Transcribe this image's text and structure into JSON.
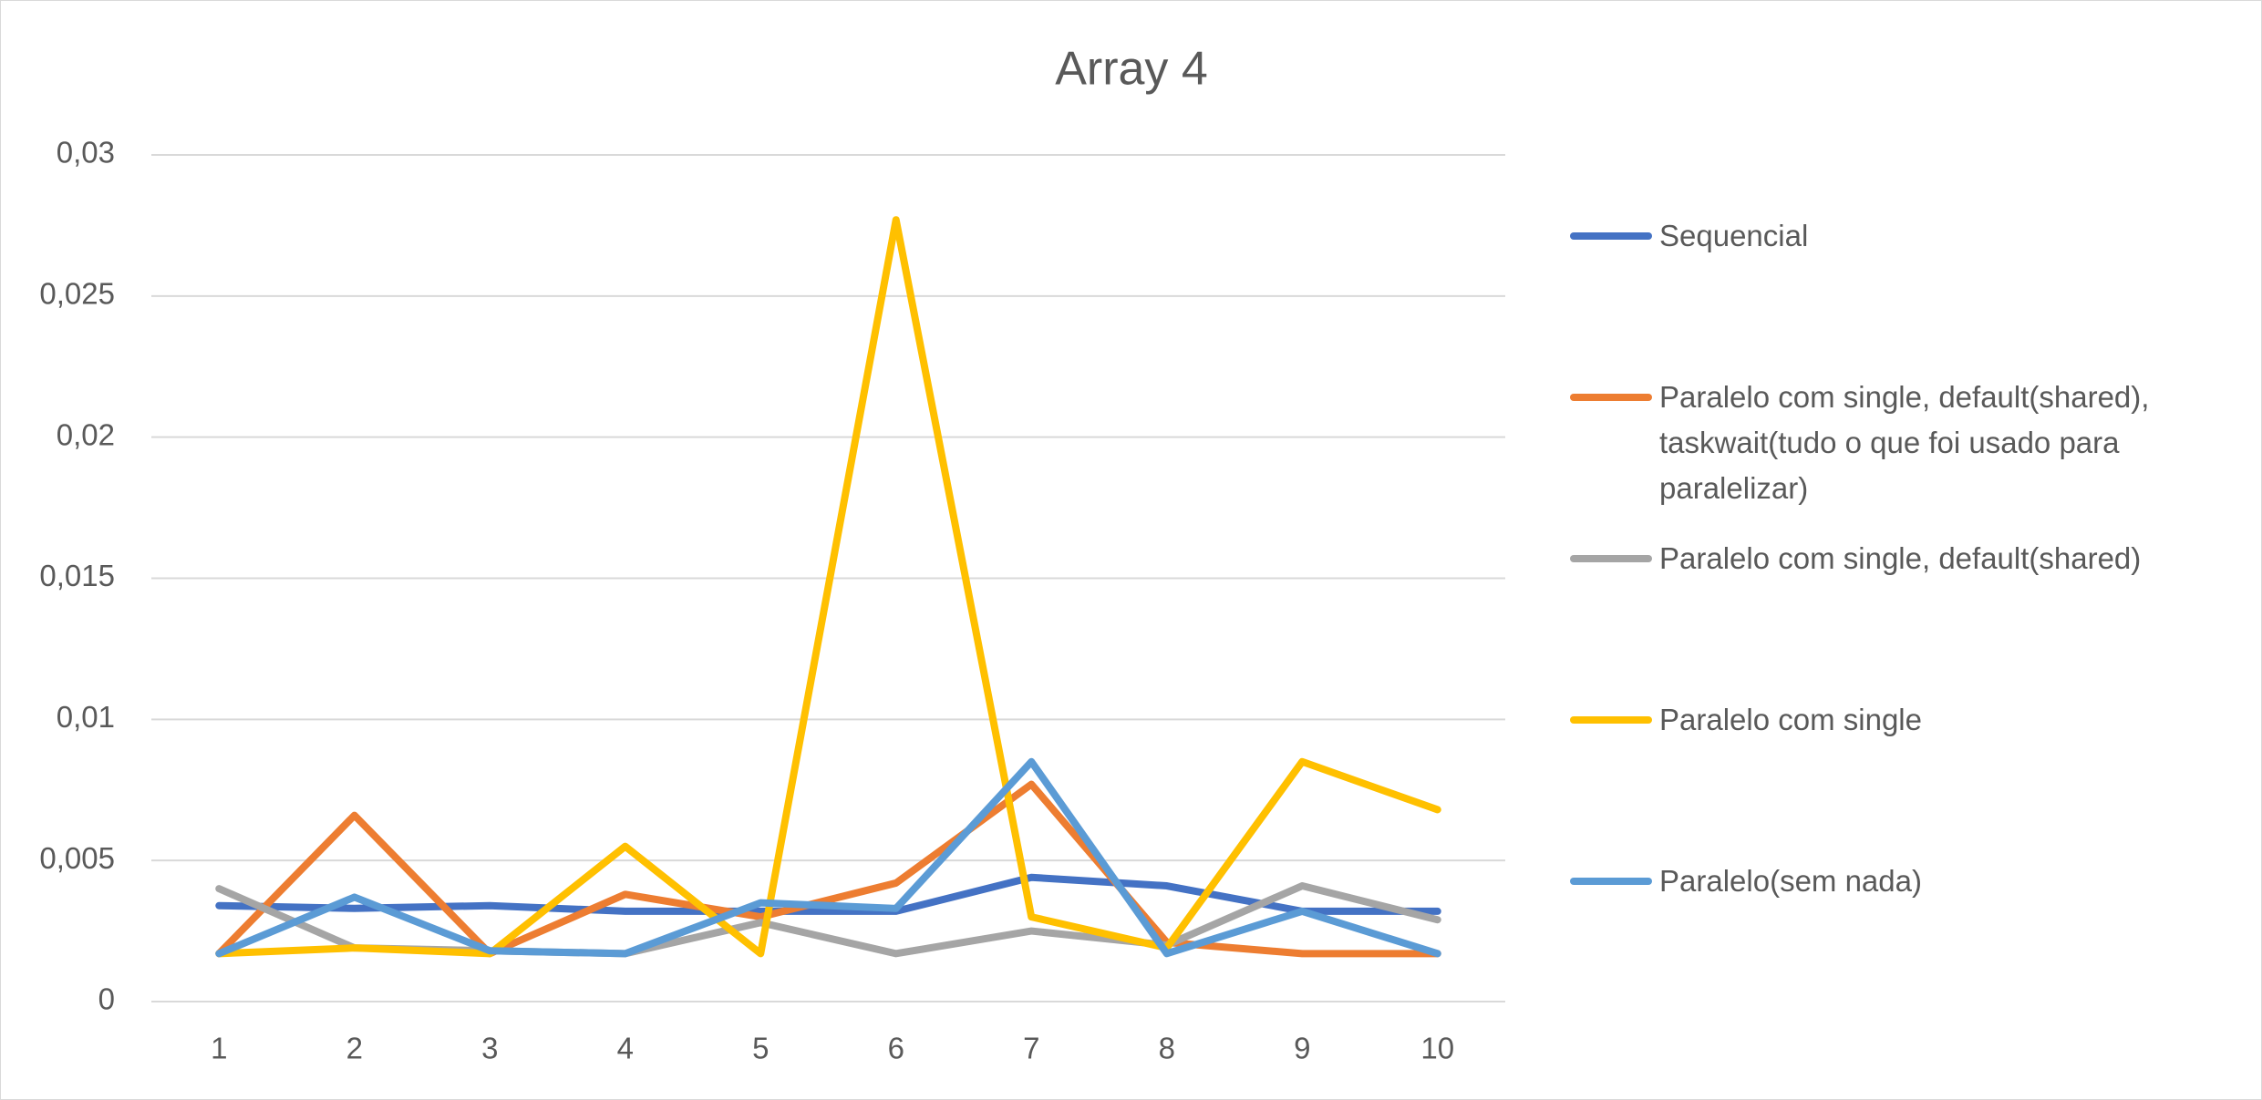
{
  "chart_data": {
    "type": "line",
    "title": "Array  4",
    "categories": [
      "1",
      "2",
      "3",
      "4",
      "5",
      "6",
      "7",
      "8",
      "9",
      "10"
    ],
    "series": [
      {
        "name": "Sequencial",
        "color": "#4472c4",
        "values": [
          0.0034,
          0.0033,
          0.0034,
          0.0032,
          0.0032,
          0.0032,
          0.0044,
          0.0041,
          0.0032,
          0.0032
        ]
      },
      {
        "name": "Paralelo com single, default(shared), taskwait(tudo o que foi usado para paralelizar)",
        "color": "#ed7d31",
        "values": [
          0.0017,
          0.0066,
          0.0017,
          0.0038,
          0.003,
          0.0042,
          0.0077,
          0.0021,
          0.0017,
          0.0017
        ]
      },
      {
        "name": "Paralelo com single, default(shared)",
        "color": "#a5a5a5",
        "values": [
          0.004,
          0.0019,
          0.0018,
          0.0017,
          0.0028,
          0.0017,
          0.0025,
          0.002,
          0.0041,
          0.0029
        ]
      },
      {
        "name": "Paralelo com single",
        "color": "#ffc000",
        "values": [
          0.0017,
          0.0019,
          0.0017,
          0.0055,
          0.0017,
          0.0277,
          0.003,
          0.0019,
          0.0085,
          0.0068
        ]
      },
      {
        "name": "Paralelo(sem nada)",
        "color": "#5b9bd5",
        "values": [
          0.0017,
          0.0037,
          0.0018,
          0.0017,
          0.0035,
          0.0033,
          0.0085,
          0.0017,
          0.0032,
          0.0017
        ]
      }
    ],
    "ylim": [
      0,
      0.03
    ],
    "yticks": [
      0,
      {
        "value": 0.005,
        "label": "0,005"
      },
      {
        "value": 0.01,
        "label": "0,01"
      },
      {
        "value": 0.015,
        "label": "0,015"
      },
      {
        "value": 0.02,
        "label": "0,02"
      },
      {
        "value": 0.025,
        "label": "0,025"
      },
      {
        "value": 0.03,
        "label": "0,03"
      }
    ],
    "grid": true,
    "legend": "right"
  }
}
